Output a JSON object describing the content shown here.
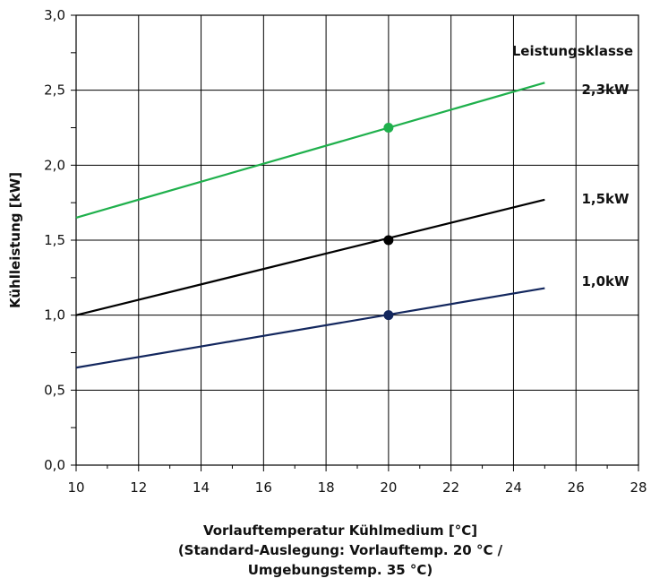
{
  "chart_data": {
    "type": "line",
    "title": "",
    "xlabel_lines": [
      "Vorlauftemperatur Kühlmedium [°C]",
      "(Standard-Auslegung: Vorlauftemp. 20 °C /",
      "Umgebungstemp. 35 °C)"
    ],
    "ylabel": "Kühlleistung [kW]",
    "xlim": [
      10,
      28
    ],
    "ylim": [
      0,
      3
    ],
    "x_ticks": [
      10,
      12,
      14,
      16,
      18,
      20,
      22,
      24,
      26,
      28
    ],
    "x_tick_labels": [
      "10",
      "12",
      "14",
      "16",
      "18",
      "20",
      "22",
      "24",
      "26",
      "28"
    ],
    "y_ticks": [
      0,
      0.5,
      1,
      1.5,
      2,
      2.5,
      3
    ],
    "y_tick_labels": [
      "0,0",
      "0,5",
      "1,0",
      "1,5",
      "2,0",
      "2,5",
      "3,0"
    ],
    "grid": true,
    "legend_title": "Leistungsklasse",
    "series": [
      {
        "name": "2,3kW",
        "color": "#1fb04c",
        "x": [
          10,
          25
        ],
        "y": [
          1.65,
          2.55
        ],
        "marker": {
          "x": 20,
          "y": 2.25
        }
      },
      {
        "name": "1,5kW",
        "color": "#000000",
        "x": [
          10,
          25
        ],
        "y": [
          1.0,
          1.77
        ],
        "marker": {
          "x": 20,
          "y": 1.5
        }
      },
      {
        "name": "1,0kW",
        "color": "#13275e",
        "x": [
          10,
          25
        ],
        "y": [
          0.65,
          1.18
        ],
        "marker": {
          "x": 20,
          "y": 1.0
        }
      }
    ]
  }
}
